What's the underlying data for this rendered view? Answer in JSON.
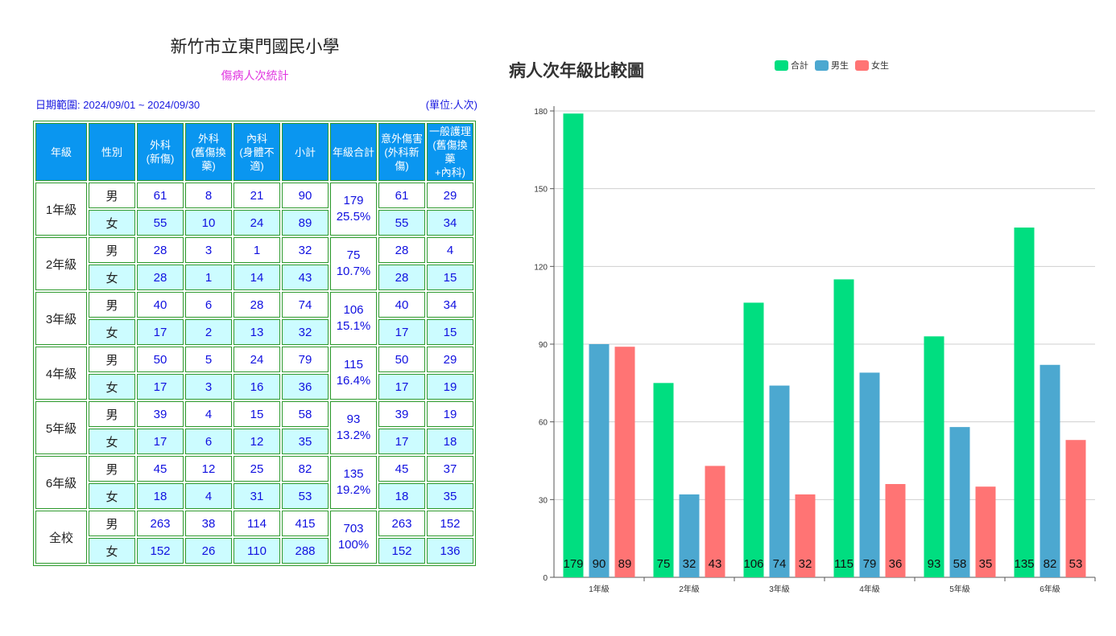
{
  "report": {
    "title": "新竹市立東門國民小學",
    "subtitle": "傷病人次統計",
    "date_range": "日期範圍: 2024/09/01 ~ 2024/09/30",
    "unit": "(單位:人次)"
  },
  "table": {
    "headers": [
      "年級",
      "性別",
      "外科\n(新傷)",
      "外科\n(舊傷換藥)",
      "內科\n(身體不適)",
      "小計",
      "年級合計",
      "意外傷害\n(外科新傷)",
      "一般護理\n(舊傷換藥\n+內科)"
    ],
    "groups": [
      {
        "grade": "1年級",
        "total": "179",
        "percent": "25.5%",
        "rows": [
          [
            "男",
            "61",
            "8",
            "21",
            "90",
            "61",
            "29"
          ],
          [
            "女",
            "55",
            "10",
            "24",
            "89",
            "55",
            "34"
          ]
        ]
      },
      {
        "grade": "2年級",
        "total": "75",
        "percent": "10.7%",
        "rows": [
          [
            "男",
            "28",
            "3",
            "1",
            "32",
            "28",
            "4"
          ],
          [
            "女",
            "28",
            "1",
            "14",
            "43",
            "28",
            "15"
          ]
        ]
      },
      {
        "grade": "3年級",
        "total": "106",
        "percent": "15.1%",
        "rows": [
          [
            "男",
            "40",
            "6",
            "28",
            "74",
            "40",
            "34"
          ],
          [
            "女",
            "17",
            "2",
            "13",
            "32",
            "17",
            "15"
          ]
        ]
      },
      {
        "grade": "4年級",
        "total": "115",
        "percent": "16.4%",
        "rows": [
          [
            "男",
            "50",
            "5",
            "24",
            "79",
            "50",
            "29"
          ],
          [
            "女",
            "17",
            "3",
            "16",
            "36",
            "17",
            "19"
          ]
        ]
      },
      {
        "grade": "5年級",
        "total": "93",
        "percent": "13.2%",
        "rows": [
          [
            "男",
            "39",
            "4",
            "15",
            "58",
            "39",
            "19"
          ],
          [
            "女",
            "17",
            "6",
            "12",
            "35",
            "17",
            "18"
          ]
        ]
      },
      {
        "grade": "6年級",
        "total": "135",
        "percent": "19.2%",
        "rows": [
          [
            "男",
            "45",
            "12",
            "25",
            "82",
            "45",
            "37"
          ],
          [
            "女",
            "18",
            "4",
            "31",
            "53",
            "18",
            "35"
          ]
        ]
      },
      {
        "grade": "全校",
        "total": "703",
        "percent": "100%",
        "rows": [
          [
            "男",
            "263",
            "38",
            "114",
            "415",
            "263",
            "152"
          ],
          [
            "女",
            "152",
            "26",
            "110",
            "288",
            "152",
            "136"
          ]
        ]
      }
    ]
  },
  "chart_data": {
    "type": "bar",
    "title": "傷病人次年級比較圖",
    "title_visible": "病人次年級比較圖",
    "categories": [
      "1年級",
      "2年級",
      "3年級",
      "4年級",
      "5年級",
      "6年級"
    ],
    "series": [
      {
        "name": "合計",
        "color": "#00de80",
        "values": [
          179,
          75,
          106,
          115,
          93,
          135
        ]
      },
      {
        "name": "男生",
        "color": "#4ca8d0",
        "values": [
          90,
          32,
          74,
          79,
          58,
          82
        ]
      },
      {
        "name": "女生",
        "color": "#ff7474",
        "values": [
          89,
          43,
          32,
          36,
          35,
          53
        ]
      }
    ],
    "ylim": [
      0,
      180
    ],
    "yticks": [
      0,
      30,
      60,
      90,
      120,
      150,
      180
    ],
    "grid": true,
    "legend": "top"
  }
}
